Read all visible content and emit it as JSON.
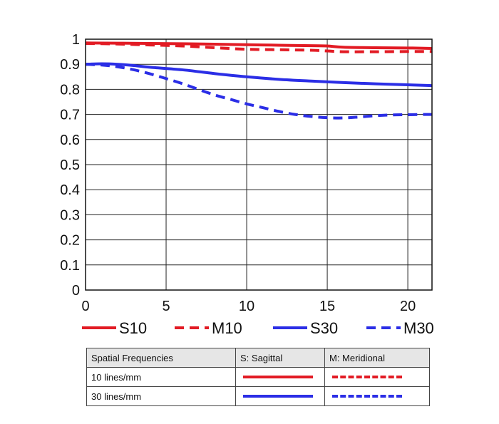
{
  "chart_data": {
    "type": "line",
    "x_ticks": [
      "0",
      "5",
      "10",
      "15",
      "20"
    ],
    "y_ticks": [
      "0",
      "0.1",
      "0.2",
      "0.3",
      "0.4",
      "0.5",
      "0.6",
      "0.7",
      "0.8",
      "0.9",
      "1"
    ],
    "xlim": [
      0,
      21.5
    ],
    "ylim": [
      0,
      1
    ],
    "grid": true,
    "legend_position": "below plot",
    "series": [
      {
        "name": "S10",
        "color": "#e21b24",
        "style": "solid",
        "x": [
          0,
          2,
          4,
          6,
          8,
          10,
          12,
          14,
          15,
          16,
          18,
          20,
          21.5
        ],
        "y": [
          0.985,
          0.984,
          0.983,
          0.982,
          0.98,
          0.978,
          0.976,
          0.974,
          0.973,
          0.968,
          0.966,
          0.965,
          0.963
        ]
      },
      {
        "name": "M10",
        "color": "#e21b24",
        "style": "dashed",
        "x": [
          0,
          2,
          4,
          6,
          8,
          10,
          12,
          14,
          15,
          16,
          18,
          20,
          21.5
        ],
        "y": [
          0.983,
          0.981,
          0.977,
          0.973,
          0.966,
          0.96,
          0.958,
          0.956,
          0.953,
          0.95,
          0.95,
          0.951,
          0.951
        ]
      },
      {
        "name": "S30",
        "color": "#2b2ee6",
        "style": "solid",
        "x": [
          0,
          1,
          2,
          3,
          4,
          6,
          8,
          10,
          12,
          14,
          16,
          18,
          20,
          21.5
        ],
        "y": [
          0.9,
          0.902,
          0.9,
          0.895,
          0.888,
          0.878,
          0.863,
          0.85,
          0.84,
          0.833,
          0.827,
          0.822,
          0.818,
          0.815
        ]
      },
      {
        "name": "M30",
        "color": "#2b2ee6",
        "style": "dashed",
        "x": [
          0,
          1,
          2,
          3,
          4,
          5,
          6,
          7,
          8,
          9,
          10,
          11,
          12,
          13,
          14,
          15,
          16,
          17,
          18,
          19,
          20,
          21,
          21.5
        ],
        "y": [
          0.9,
          0.897,
          0.89,
          0.878,
          0.862,
          0.843,
          0.823,
          0.8,
          0.778,
          0.76,
          0.742,
          0.727,
          0.712,
          0.7,
          0.692,
          0.687,
          0.686,
          0.69,
          0.695,
          0.698,
          0.699,
          0.7,
          0.7
        ]
      }
    ]
  },
  "key_table": {
    "headers": [
      "Spatial Frequencies",
      "S: Sagittal",
      "M: Meridional"
    ],
    "rows": [
      {
        "label": "10 lines/mm",
        "color": "#e21b24"
      },
      {
        "label": "30 lines/mm",
        "color": "#2b2ee6"
      }
    ]
  }
}
